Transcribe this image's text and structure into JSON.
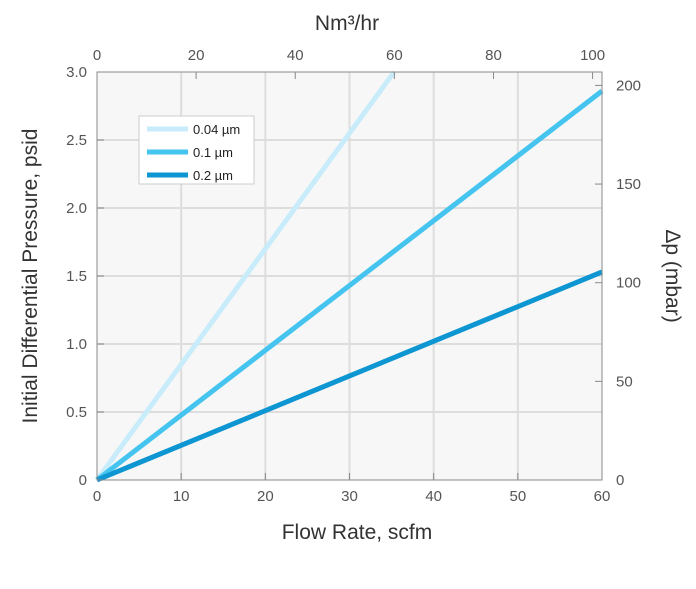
{
  "chart_data": {
    "type": "line",
    "xlabel": "Flow Rate, scfm",
    "ylabel": "Initial Differential Pressure, psid",
    "x2label": "Nm³/hr",
    "y2label": "Δp (mbar)",
    "xlim": [
      0,
      60
    ],
    "ylim": [
      0,
      3.0
    ],
    "x2lim": [
      0,
      101.9
    ],
    "y2lim": [
      0,
      206.8
    ],
    "x_ticks": [
      "0",
      "10",
      "20",
      "30",
      "40",
      "50",
      "60"
    ],
    "y_ticks": [
      "0",
      "0.5",
      "1.0",
      "1.5",
      "2.0",
      "2.5",
      "3.0"
    ],
    "x2_ticks": [
      "0",
      "20",
      "40",
      "60",
      "80",
      "100"
    ],
    "y2_ticks": [
      "0",
      "50",
      "100",
      "150",
      "200"
    ],
    "grid": true,
    "legend_position": "top-left",
    "series": [
      {
        "name": "0.04 µm",
        "color": "#c9ecfb",
        "x": [
          0,
          35.3
        ],
        "y": [
          0,
          3.0
        ]
      },
      {
        "name": "0.1 µm",
        "color": "#45c4ef",
        "x": [
          0,
          60
        ],
        "y": [
          0,
          2.86
        ]
      },
      {
        "name": "0.2 µm",
        "color": "#0d96d2",
        "x": [
          0,
          60
        ],
        "y": [
          0,
          1.53
        ]
      }
    ]
  }
}
